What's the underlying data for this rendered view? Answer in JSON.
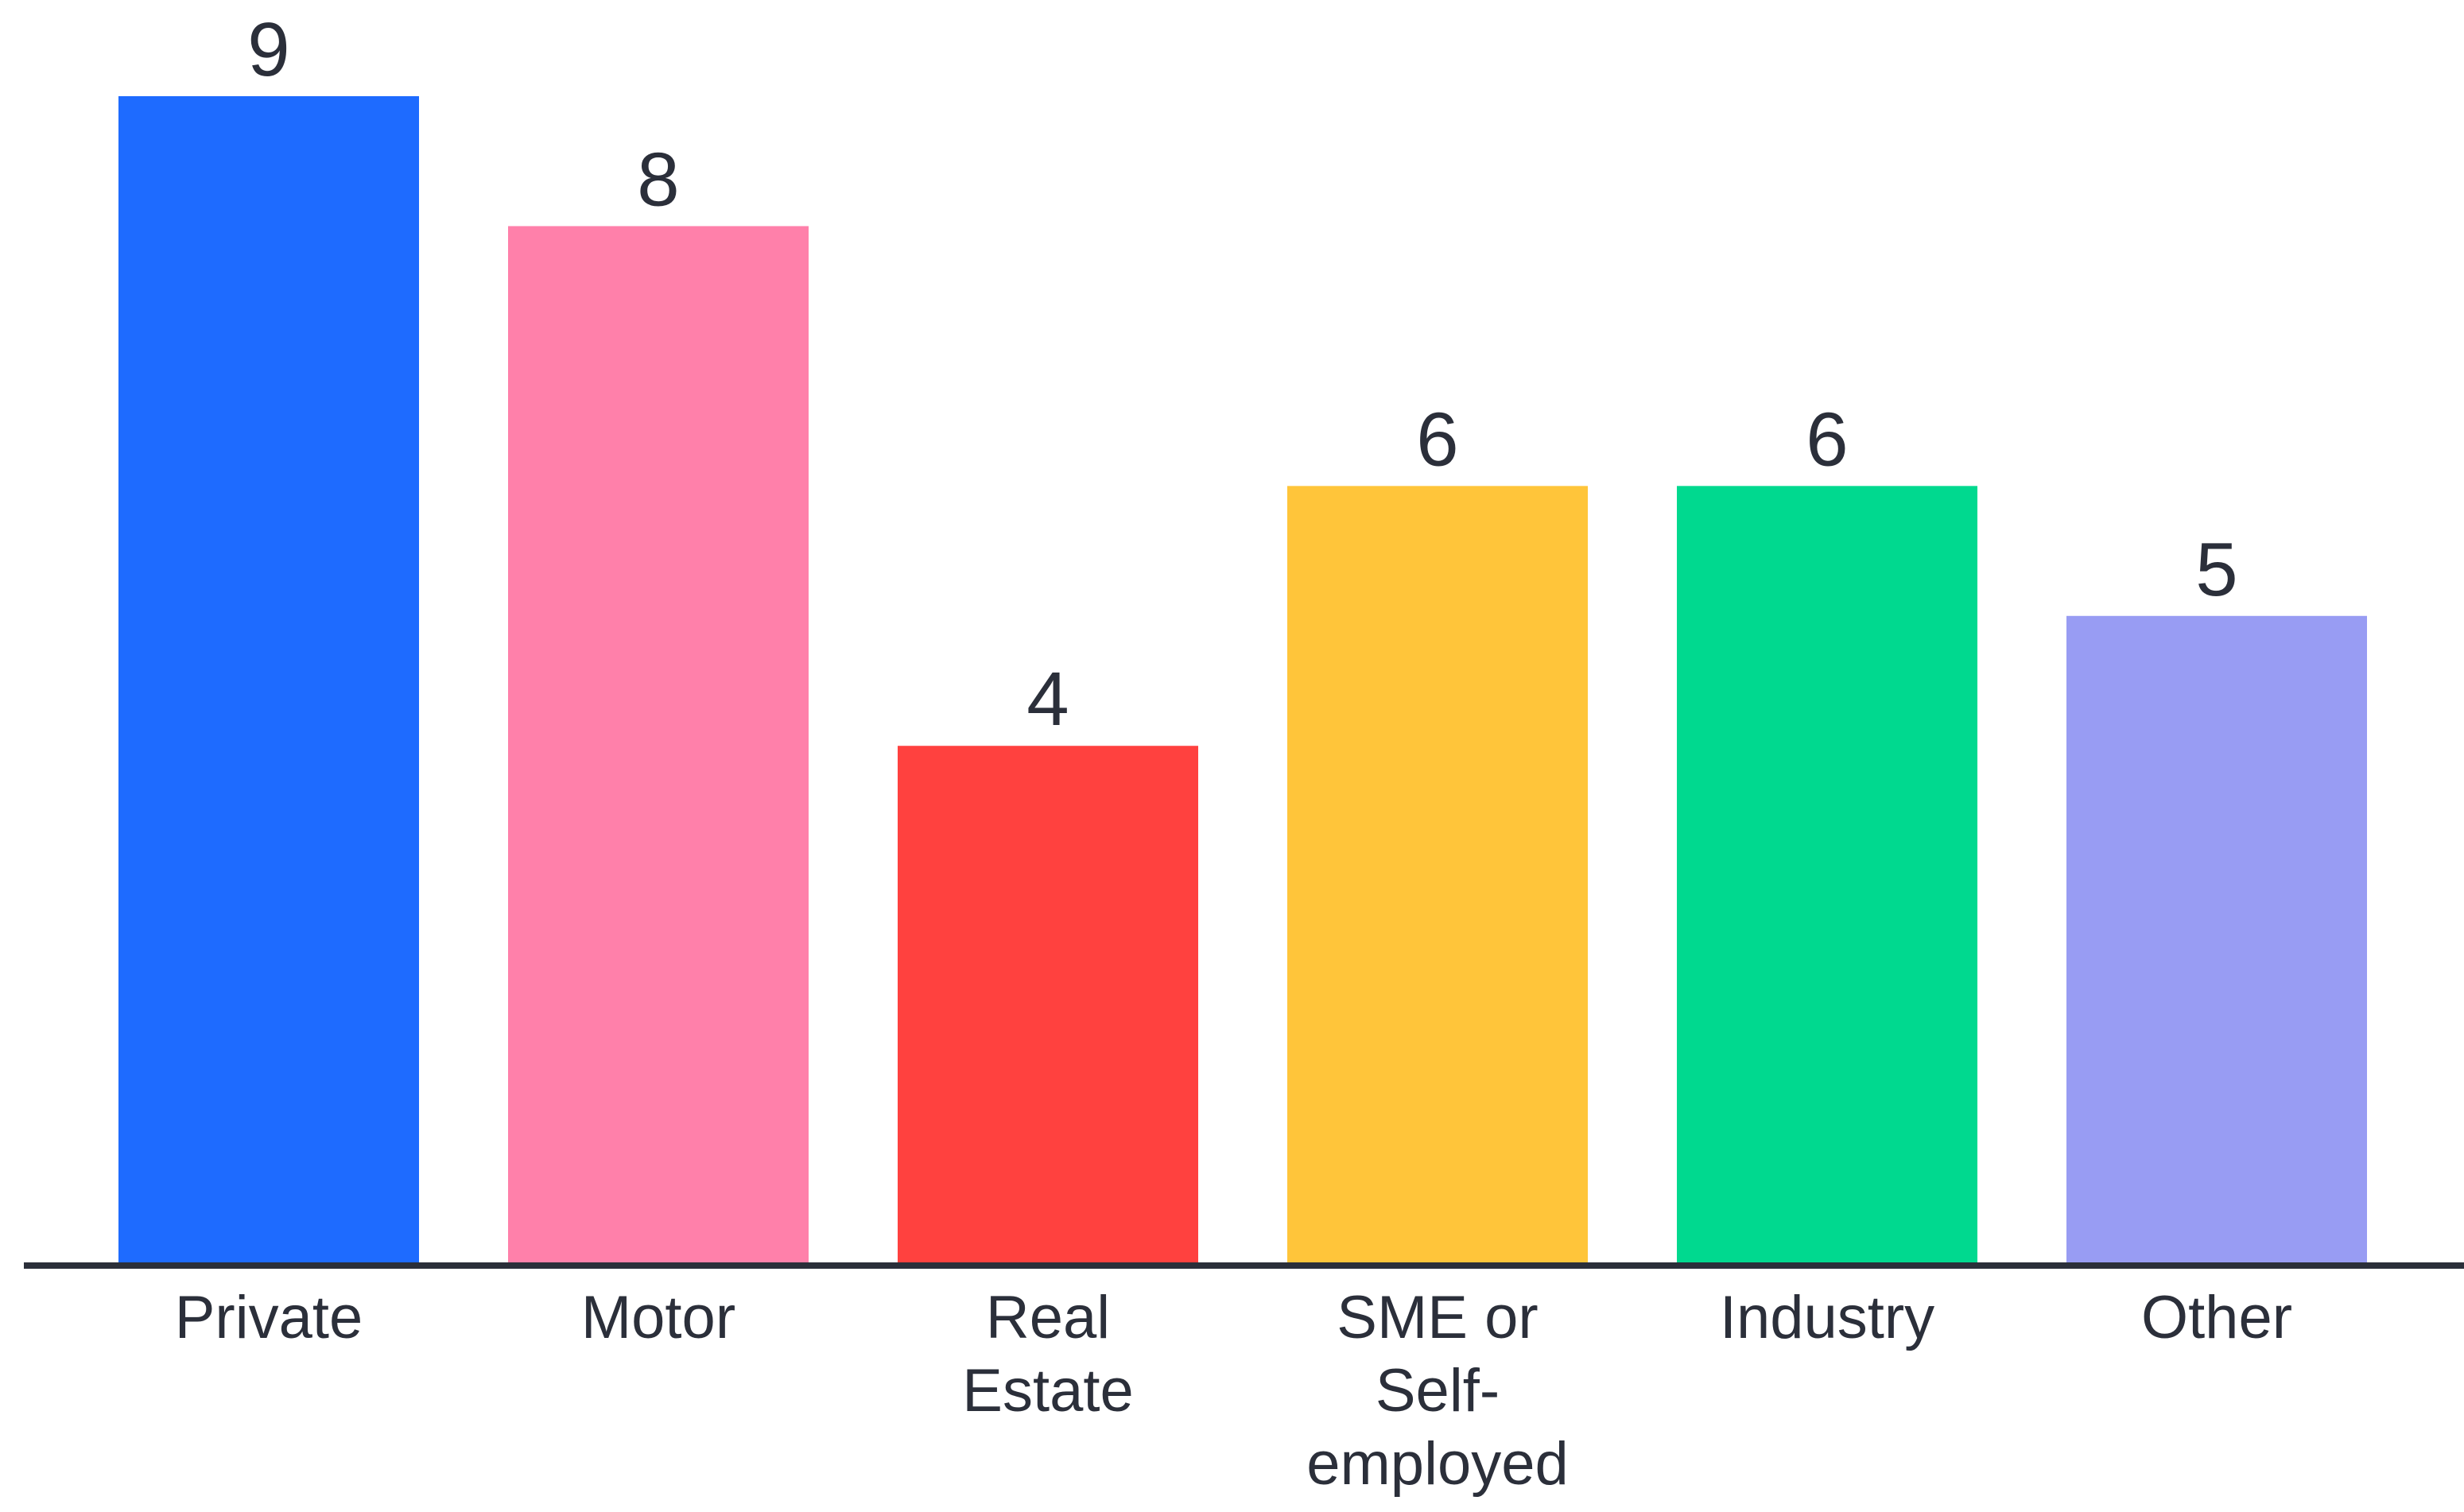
{
  "chart_data": {
    "type": "bar",
    "categories": [
      [
        "Private"
      ],
      [
        "Motor"
      ],
      [
        "Real",
        "Estate"
      ],
      [
        "SME or",
        "Self-",
        "employed"
      ],
      [
        "Industry"
      ],
      [
        "Other"
      ]
    ],
    "values": [
      9,
      8,
      4,
      6,
      6,
      5
    ],
    "colors": [
      "#1e6bff",
      "#ff80aa",
      "#ff413f",
      "#ffc53a",
      "#00d98f",
      "#989cf3"
    ],
    "axis_color": "#2b2f3a",
    "title": "",
    "xlabel": "",
    "ylabel": "",
    "ylim": [
      0,
      9
    ],
    "grid": false,
    "legend": "none",
    "data_labels": true
  }
}
